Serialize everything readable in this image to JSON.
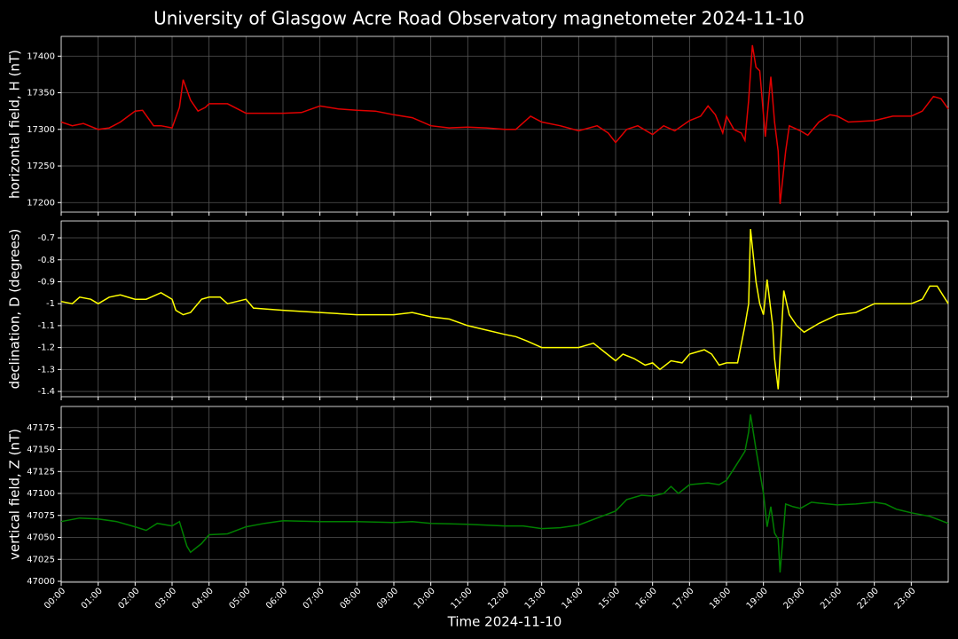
{
  "title": "University of Glasgow Acre Road Observatory magnetometer 2024-11-10",
  "chart_data": [
    {
      "type": "line",
      "ylabel": "horizontal field, H (nT)",
      "color": "#e00000",
      "grid": true,
      "xlim": [
        0,
        24
      ],
      "ylim": [
        17187,
        17427
      ],
      "yticks": [
        17200,
        17250,
        17300,
        17350,
        17400
      ],
      "x": [
        0,
        0.3,
        0.6,
        1,
        1.3,
        1.6,
        2,
        2.2,
        2.5,
        2.7,
        3,
        3.2,
        3.3,
        3.5,
        3.7,
        3.9,
        4,
        4.5,
        5,
        6,
        6.5,
        7,
        7.5,
        8,
        8.5,
        9,
        9.5,
        10,
        10.5,
        11,
        11.5,
        12,
        12.3,
        12.7,
        13,
        13.5,
        14,
        14.5,
        14.8,
        15,
        15.3,
        15.6,
        16,
        16.3,
        16.6,
        17,
        17.3,
        17.5,
        17.7,
        17.9,
        18,
        18.2,
        18.4,
        18.5,
        18.6,
        18.7,
        18.8,
        18.9,
        19.05,
        19.2,
        19.3,
        19.4,
        19.45,
        19.6,
        19.7,
        20,
        20.2,
        20.5,
        20.8,
        21,
        21.3,
        22,
        22.5,
        23,
        23.3,
        23.6,
        23.8,
        24
      ],
      "values": [
        17310,
        17305,
        17308,
        17300,
        17302,
        17310,
        17325,
        17326,
        17305,
        17305,
        17302,
        17330,
        17368,
        17340,
        17325,
        17330,
        17335,
        17335,
        17322,
        17322,
        17323,
        17332,
        17328,
        17326,
        17325,
        17320,
        17316,
        17305,
        17302,
        17303,
        17302,
        17300,
        17300,
        17318,
        17310,
        17305,
        17298,
        17305,
        17295,
        17282,
        17300,
        17305,
        17293,
        17305,
        17298,
        17312,
        17318,
        17332,
        17320,
        17295,
        17318,
        17300,
        17295,
        17285,
        17340,
        17415,
        17385,
        17380,
        17290,
        17372,
        17310,
        17270,
        17198,
        17270,
        17305,
        17298,
        17292,
        17310,
        17320,
        17318,
        17310,
        17312,
        17318,
        17318,
        17325,
        17345,
        17342,
        17328
      ]
    },
    {
      "type": "line",
      "ylabel": "declination, D (degrees)",
      "color": "#ffff00",
      "grid": true,
      "xlim": [
        0,
        24
      ],
      "ylim": [
        -1.424,
        -0.623
      ],
      "yticks": [
        -1.4,
        -1.3,
        -1.2,
        -1.1,
        -1.0,
        -0.9,
        -0.8,
        -0.7
      ],
      "x": [
        0,
        0.3,
        0.5,
        0.8,
        1,
        1.3,
        1.6,
        2,
        2.3,
        2.7,
        3,
        3.1,
        3.3,
        3.5,
        3.8,
        4,
        4.3,
        4.5,
        5,
        5.2,
        6,
        7,
        8,
        9,
        9.5,
        10,
        10.5,
        11,
        11.5,
        12,
        12.3,
        12.6,
        13,
        13.5,
        14,
        14.4,
        14.7,
        15,
        15.2,
        15.5,
        15.8,
        16,
        16.2,
        16.5,
        16.8,
        17,
        17.4,
        17.6,
        17.8,
        18,
        18.3,
        18.5,
        18.6,
        18.65,
        18.8,
        18.9,
        19.0,
        19.1,
        19.25,
        19.3,
        19.4,
        19.55,
        19.7,
        19.9,
        20.1,
        20.5,
        21,
        21.5,
        22,
        22.5,
        23,
        23.3,
        23.5,
        23.7,
        24
      ],
      "values": [
        -0.99,
        -1.0,
        -0.97,
        -0.98,
        -1.0,
        -0.97,
        -0.96,
        -0.98,
        -0.98,
        -0.95,
        -0.98,
        -1.03,
        -1.05,
        -1.04,
        -0.98,
        -0.97,
        -0.97,
        -1.0,
        -0.98,
        -1.02,
        -1.03,
        -1.04,
        -1.05,
        -1.05,
        -1.04,
        -1.06,
        -1.07,
        -1.1,
        -1.12,
        -1.14,
        -1.15,
        -1.17,
        -1.2,
        -1.2,
        -1.2,
        -1.18,
        -1.22,
        -1.26,
        -1.23,
        -1.25,
        -1.28,
        -1.27,
        -1.3,
        -1.26,
        -1.27,
        -1.23,
        -1.21,
        -1.23,
        -1.28,
        -1.27,
        -1.27,
        -1.1,
        -1.0,
        -0.66,
        -0.9,
        -1.0,
        -1.05,
        -0.89,
        -1.1,
        -1.25,
        -1.39,
        -0.94,
        -1.05,
        -1.1,
        -1.13,
        -1.09,
        -1.05,
        -1.04,
        -1.0,
        -1.0,
        -1.0,
        -0.98,
        -0.92,
        -0.92,
        -1.0
      ]
    },
    {
      "type": "line",
      "ylabel": "vertical field, Z (nT)",
      "xlabel": "Time 2024-11-10",
      "color": "#008000",
      "grid": true,
      "xlim": [
        0,
        24
      ],
      "ylim": [
        46999,
        47199
      ],
      "yticks": [
        47000,
        47025,
        47050,
        47075,
        47100,
        47125,
        47150,
        47175
      ],
      "xticks": [
        {
          "value": 0,
          "label": "00:00"
        },
        {
          "value": 1,
          "label": "01:00"
        },
        {
          "value": 2,
          "label": "02:00"
        },
        {
          "value": 3,
          "label": "03:00"
        },
        {
          "value": 4,
          "label": "04:00"
        },
        {
          "value": 5,
          "label": "05:00"
        },
        {
          "value": 6,
          "label": "06:00"
        },
        {
          "value": 7,
          "label": "07:00"
        },
        {
          "value": 8,
          "label": "08:00"
        },
        {
          "value": 9,
          "label": "09:00"
        },
        {
          "value": 10,
          "label": "10:00"
        },
        {
          "value": 11,
          "label": "11:00"
        },
        {
          "value": 12,
          "label": "12:00"
        },
        {
          "value": 13,
          "label": "13:00"
        },
        {
          "value": 14,
          "label": "14:00"
        },
        {
          "value": 15,
          "label": "15:00"
        },
        {
          "value": 16,
          "label": "16:00"
        },
        {
          "value": 17,
          "label": "17:00"
        },
        {
          "value": 18,
          "label": "18:00"
        },
        {
          "value": 19,
          "label": "19:00"
        },
        {
          "value": 20,
          "label": "20:00"
        },
        {
          "value": 21,
          "label": "21:00"
        },
        {
          "value": 22,
          "label": "22:00"
        },
        {
          "value": 23,
          "label": "23:00"
        }
      ],
      "x": [
        0,
        0.5,
        1,
        1.5,
        2,
        2.3,
        2.6,
        3,
        3.2,
        3.4,
        3.5,
        3.8,
        4,
        4.5,
        5,
        5.5,
        6,
        7,
        8,
        9,
        9.5,
        10,
        11,
        12,
        12.5,
        13,
        13.5,
        14,
        14.5,
        15,
        15.3,
        15.7,
        16,
        16.3,
        16.5,
        16.7,
        17,
        17.5,
        17.8,
        18,
        18.2,
        18.5,
        18.6,
        18.65,
        18.8,
        19,
        19.1,
        19.2,
        19.3,
        19.4,
        19.45,
        19.6,
        19.8,
        20,
        20.3,
        20.5,
        21,
        21.5,
        22,
        22.3,
        22.6,
        23,
        23.5,
        24
      ],
      "values": [
        47068,
        47072,
        47071,
        47068,
        47062,
        47058,
        47066,
        47063,
        47068,
        47040,
        47033,
        47043,
        47053,
        47054,
        47062,
        47066,
        47069,
        47068,
        47068,
        47067,
        47068,
        47066,
        47065,
        47063,
        47063,
        47060,
        47061,
        47064,
        47072,
        47080,
        47093,
        47098,
        47097,
        47100,
        47108,
        47100,
        47110,
        47112,
        47110,
        47115,
        47128,
        47148,
        47170,
        47190,
        47150,
        47100,
        47062,
        47085,
        47055,
        47048,
        47010,
        47088,
        47085,
        47083,
        47090,
        47089,
        47087,
        47088,
        47090,
        47088,
        47082,
        47078,
        47074,
        47066
      ]
    }
  ]
}
